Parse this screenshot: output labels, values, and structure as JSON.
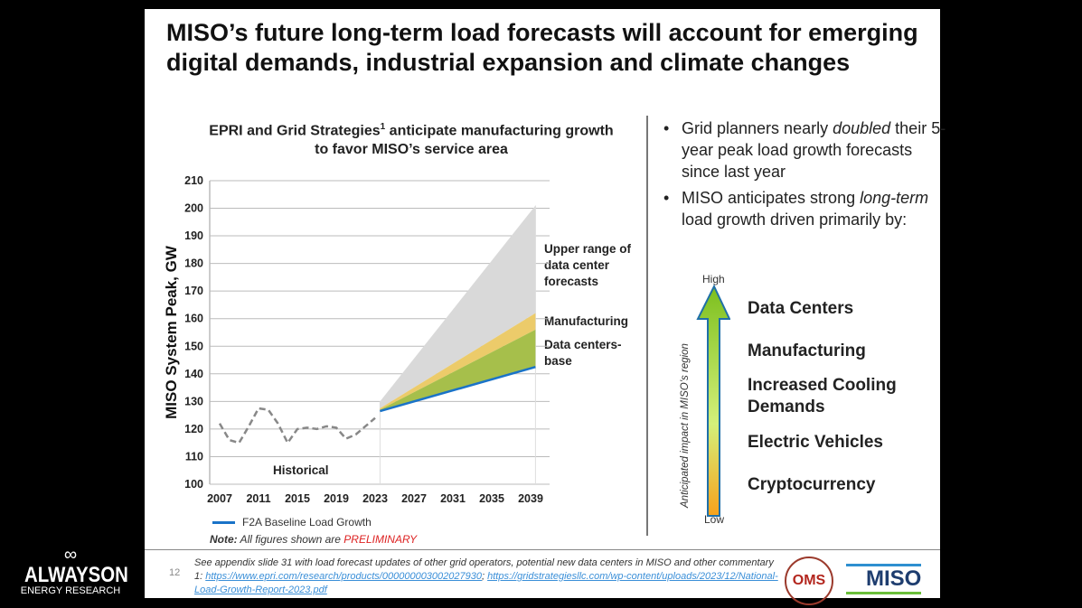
{
  "title": "MISO’s future long-term load forecasts will account for emerging digital demands, industrial expansion and climate changes",
  "chart_data": {
    "type": "area",
    "title": "EPRI and Grid Strategies",
    "title_sup": "1",
    "title_rest": " anticipate manufacturing growth to favor MISO’s service area",
    "ylabel": "MISO System Peak, GW",
    "ylim": [
      100,
      210
    ],
    "yticks": [
      "100",
      "110",
      "120",
      "130",
      "140",
      "150",
      "160",
      "170",
      "180",
      "190",
      "200",
      "210"
    ],
    "xticks": [
      "2007",
      "2011",
      "2015",
      "2019",
      "2023",
      "2027",
      "2031",
      "2035",
      "2039"
    ],
    "historical": {
      "name": "Historical",
      "x": [
        2007,
        2008,
        2009,
        2010,
        2011,
        2012,
        2013,
        2014,
        2015,
        2016,
        2017,
        2018,
        2019,
        2020,
        2021,
        2022,
        2023
      ],
      "values": [
        122,
        116,
        115,
        121,
        127.5,
        127,
        122,
        115,
        120,
        120.5,
        120,
        121,
        120.5,
        116.5,
        118,
        121,
        124
      ]
    },
    "forecast_x": [
      2023.5,
      2039.5
    ],
    "series": [
      {
        "name": "F2A Baseline Load Growth",
        "values": [
          126.5,
          142.5
        ],
        "color": "#1a73c8"
      },
      {
        "name": "Data centers-base",
        "values": [
          127,
          156
        ],
        "color": "#a6bf4b"
      },
      {
        "name": "Manufacturing",
        "values": [
          127.5,
          162
        ],
        "color": "#eccb6a"
      },
      {
        "name": "Upper range of data center forecasts",
        "values": [
          130,
          201
        ],
        "color": "#d9d9d9"
      }
    ],
    "legend": "F2A Baseline Load Growth",
    "note_prefix": "Note:",
    "note_text": " All figures shown are ",
    "note_flag": "PRELIMINARY"
  },
  "labels": {
    "upper": "Upper range of data center forecasts",
    "manufacturing": "Manufacturing",
    "dc": "Data centers-base",
    "historical": "Historical"
  },
  "bullets": {
    "b1a": "Grid planners nearly ",
    "b1b": "doubled",
    "b1c": " their 5-year peak load growth forecasts since last year",
    "b2a": "MISO anticipates strong ",
    "b2b": "long-term",
    "b2c": " load growth driven primarily by:"
  },
  "impact": {
    "high": "High",
    "low": "Low",
    "axis": "Anticipated impact in MISO’s region",
    "drivers": [
      "Data Centers",
      "Manufacturing",
      "Increased Cooling Demands",
      "Electric Vehicles",
      "Cryptocurrency"
    ]
  },
  "footer": {
    "page": "12",
    "text": "See appendix slide 31 with load forecast updates of other grid operators, potential new data centers in MISO and other commentary",
    "ref": "1: ",
    "link1": "https://www.epri.com/research/products/000000003002027930",
    "sep": "; ",
    "link2": "https://gridstrategiesllc.com/wp-content/uploads/2023/12/National-Load-Growth-Report-2023.pdf",
    "oms": "OMS",
    "miso": "MISO"
  },
  "brand": {
    "name": "ALWAYSON",
    "sub": "ENERGY RESEARCH"
  }
}
